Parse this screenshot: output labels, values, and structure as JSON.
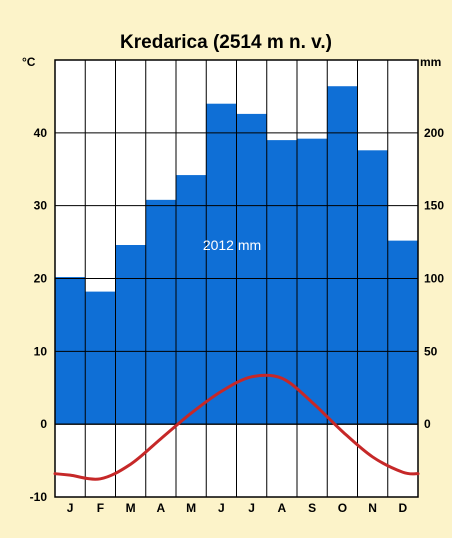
{
  "chart_data": {
    "type": "bar",
    "title": "Kredarica (2514 m n. v.)",
    "categories": [
      "J",
      "F",
      "M",
      "A",
      "M",
      "J",
      "J",
      "A",
      "S",
      "O",
      "N",
      "D"
    ],
    "series": [
      {
        "values": [
          101,
          91,
          123,
          154,
          171,
          220,
          213,
          195,
          196,
          232,
          188,
          126
        ]
      }
    ],
    "temperature": {
      "values": [
        -7.0,
        -7.5,
        -5.5,
        -2.0,
        1.5,
        4.5,
        6.5,
        6.3,
        3.0,
        -1.0,
        -4.5,
        -6.6
      ]
    },
    "annotation": "2012 mm",
    "left_axis": {
      "unit": "°C",
      "ticks": [
        "-10",
        "0",
        "10",
        "20",
        "30",
        "40"
      ],
      "range": [
        -10,
        50
      ]
    },
    "right_axis": {
      "unit": "mm",
      "ticks": [
        "0",
        "50",
        "100",
        "150",
        "200"
      ],
      "range": [
        0,
        250
      ]
    },
    "grid": true,
    "colors": {
      "background": "#fcf3c9",
      "bar": "#0f6fd6",
      "temperature_line": "#c62828",
      "grid_line": "#000000",
      "plot_background": "#ffffff",
      "minor_grid": "#9a9a9a"
    }
  }
}
